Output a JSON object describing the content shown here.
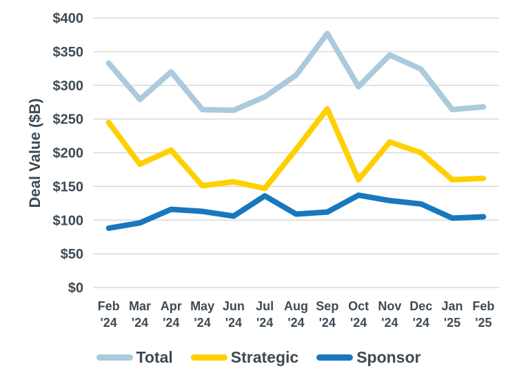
{
  "chart_data": {
    "type": "line",
    "title": "",
    "xlabel": "",
    "ylabel": "Deal Value ($B)",
    "ylim": [
      0,
      400
    ],
    "ytick_step": 50,
    "ytick_prefix": "$",
    "grid": true,
    "legend_position": "bottom",
    "text_color": "#3E4A53",
    "gridline_color": "#D9D9D9",
    "categories": [
      "Feb '24",
      "Mar '24",
      "Apr '24",
      "May '24",
      "Jun '24",
      "Jul '24",
      "Aug '24",
      "Sep '24",
      "Oct '24",
      "Nov '24",
      "Dec '24",
      "Jan '25",
      "Feb '25"
    ],
    "series": [
      {
        "name": "Total",
        "color": "#ABCADC",
        "values": [
          333,
          279,
          320,
          264,
          263,
          283,
          315,
          377,
          298,
          345,
          324,
          264,
          268
        ]
      },
      {
        "name": "Strategic",
        "color": "#FFD000",
        "values": [
          245,
          183,
          204,
          151,
          157,
          147,
          205,
          265,
          160,
          216,
          200,
          160,
          162
        ]
      },
      {
        "name": "Sponsor",
        "color": "#1778BE",
        "values": [
          88,
          96,
          116,
          113,
          106,
          136,
          109,
          112,
          137,
          129,
          124,
          103,
          105
        ]
      }
    ],
    "legend": [
      "Total",
      "Strategic",
      "Sponsor"
    ]
  }
}
